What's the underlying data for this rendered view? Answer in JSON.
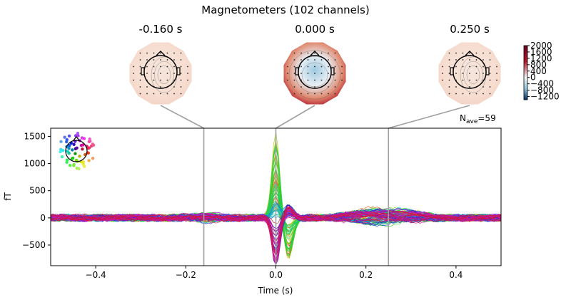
{
  "figure": {
    "title": "Magnetometers (102 channels)",
    "nave_prefix": "N",
    "nave_sub": "ave",
    "nave_value": "=59"
  },
  "topomaps": [
    {
      "time_label": "-0.160 s",
      "time": -0.16,
      "intensity": 0.15
    },
    {
      "time_label": "0.000 s",
      "time": 0.0,
      "intensity": 1.0
    },
    {
      "time_label": "0.250 s",
      "time": 0.25,
      "intensity": 0.2
    }
  ],
  "colorbar": {
    "ticks": [
      2000,
      1600,
      1200,
      800,
      400,
      0,
      -400,
      -800,
      -1200
    ],
    "range": [
      -1400,
      2000
    ],
    "colors": {
      "neg": "#2166ac",
      "mid": "#f7f7f7",
      "pos": "#b2182b"
    }
  },
  "chart_data": {
    "type": "line",
    "title": "Magnetometers (102 channels)",
    "xlabel": "Time (s)",
    "ylabel": "fT",
    "xlim": [
      -0.5,
      0.5
    ],
    "ylim": [
      -880,
      1650
    ],
    "xticks": [
      -0.4,
      -0.2,
      0.0,
      0.2,
      0.4
    ],
    "xtick_labels": [
      "−0.4",
      "−0.2",
      "0.0",
      "0.2",
      "0.4"
    ],
    "yticks": [
      1500,
      1000,
      500,
      0,
      -500
    ],
    "ytick_labels": [
      "1500",
      "1000",
      "500",
      "0",
      "−500"
    ],
    "vlines": [
      -0.16,
      0.0,
      0.25
    ],
    "n_channels": 102,
    "envelope_max": [
      {
        "x": -0.5,
        "y": 40
      },
      {
        "x": -0.3,
        "y": 60
      },
      {
        "x": -0.16,
        "y": 110
      },
      {
        "x": -0.04,
        "y": 40
      },
      {
        "x": 0.0,
        "y": 1560
      },
      {
        "x": 0.03,
        "y": 220
      },
      {
        "x": 0.1,
        "y": 60
      },
      {
        "x": 0.2,
        "y": 200
      },
      {
        "x": 0.25,
        "y": 270
      },
      {
        "x": 0.4,
        "y": 120
      },
      {
        "x": 0.5,
        "y": 40
      }
    ],
    "envelope_min": [
      {
        "x": -0.5,
        "y": -90
      },
      {
        "x": -0.3,
        "y": -80
      },
      {
        "x": -0.16,
        "y": -70
      },
      {
        "x": -0.03,
        "y": -400
      },
      {
        "x": 0.0,
        "y": -100
      },
      {
        "x": 0.03,
        "y": -760
      },
      {
        "x": 0.1,
        "y": -130
      },
      {
        "x": 0.2,
        "y": -100
      },
      {
        "x": 0.25,
        "y": -110
      },
      {
        "x": 0.4,
        "y": -90
      },
      {
        "x": 0.5,
        "y": -90
      }
    ],
    "grid": false,
    "legend": "none"
  }
}
